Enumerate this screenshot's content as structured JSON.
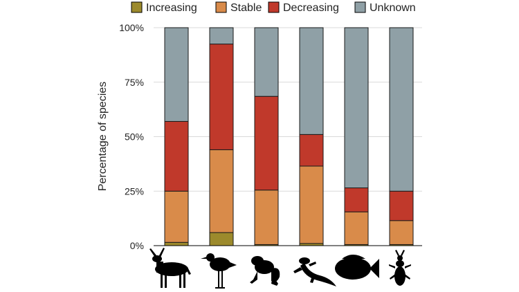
{
  "chart_data": {
    "type": "bar",
    "stacked": true,
    "ylabel": "Percentage of species",
    "ylim": [
      0,
      100
    ],
    "yticks": [
      "0%",
      "25%",
      "50%",
      "75%",
      "100%"
    ],
    "legend_position": "top",
    "grid": true,
    "categories": [
      "mammals-icon",
      "birds-icon",
      "amphibians-icon",
      "reptiles-icon",
      "fishes-icon",
      "insects-icon"
    ],
    "series": [
      {
        "name": "Increasing",
        "color": "#9c8a2c",
        "values": [
          1.5,
          6,
          0.5,
          1,
          0.5,
          0.5
        ]
      },
      {
        "name": "Stable",
        "color": "#d98b4a",
        "values": [
          23.5,
          38,
          25,
          35.5,
          15,
          11
        ]
      },
      {
        "name": "Decreasing",
        "color": "#c0392b",
        "values": [
          32,
          48.5,
          43,
          14.5,
          11,
          13.5
        ]
      },
      {
        "name": "Unknown",
        "color": "#8fa0a6",
        "values": [
          43,
          7.5,
          31.5,
          49,
          73.5,
          75
        ]
      }
    ]
  }
}
